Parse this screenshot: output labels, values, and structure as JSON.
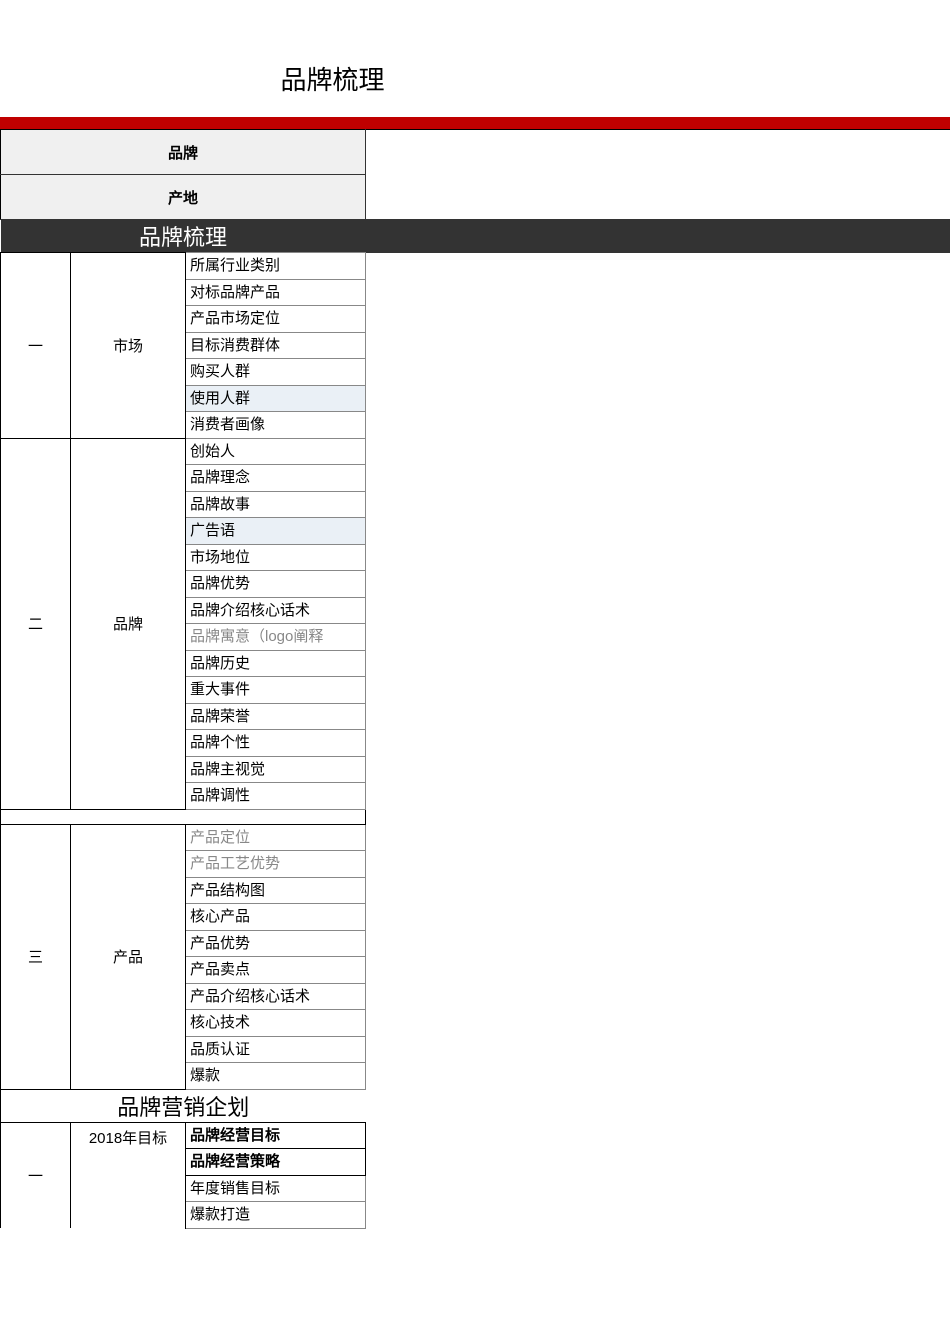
{
  "page_title": "品牌梳理",
  "colors": {
    "red_bar": "#c00000",
    "dark_header_bg": "#333333",
    "header_bg": "#f0f0f0",
    "bluish_row": "#eaf0f6",
    "gray_text": "#888888"
  },
  "top_headers": [
    "品牌",
    "产地"
  ],
  "dark_section_header": "品牌梳理",
  "sections": [
    {
      "index": "一",
      "category": "市场",
      "items": [
        {
          "label": "所属行业类别",
          "style": "normal"
        },
        {
          "label": "对标品牌产品",
          "style": "normal"
        },
        {
          "label": "产品市场定位",
          "style": "normal"
        },
        {
          "label": "目标消费群体",
          "style": "normal"
        },
        {
          "label": "购买人群",
          "style": "normal"
        },
        {
          "label": "使用人群",
          "style": "bluish"
        },
        {
          "label": "消费者画像",
          "style": "normal"
        }
      ]
    },
    {
      "index": "二",
      "category": "品牌",
      "items": [
        {
          "label": "创始人",
          "style": "normal"
        },
        {
          "label": "品牌理念",
          "style": "normal"
        },
        {
          "label": "品牌故事",
          "style": "normal"
        },
        {
          "label": "广告语",
          "style": "bluish"
        },
        {
          "label": "市场地位",
          "style": "normal"
        },
        {
          "label": "品牌优势",
          "style": "normal"
        },
        {
          "label": "品牌介绍核心话术",
          "style": "normal"
        },
        {
          "label": "品牌寓意（logo阐释",
          "style": "gray"
        },
        {
          "label": "品牌历史",
          "style": "normal"
        },
        {
          "label": "重大事件",
          "style": "normal"
        },
        {
          "label": "品牌荣誉",
          "style": "normal"
        },
        {
          "label": "品牌个性",
          "style": "normal"
        },
        {
          "label": "品牌主视觉",
          "style": "normal"
        },
        {
          "label": "品牌调性",
          "style": "normal"
        }
      ]
    },
    {
      "index": "三",
      "category": "产品",
      "items": [
        {
          "label": "产品定位",
          "style": "gray"
        },
        {
          "label": "产品工艺优势",
          "style": "gray"
        },
        {
          "label": "产品结构图",
          "style": "normal"
        },
        {
          "label": "核心产品",
          "style": "normal"
        },
        {
          "label": "产品优势",
          "style": "normal"
        },
        {
          "label": "产品卖点",
          "style": "normal"
        },
        {
          "label": "产品介绍核心话术",
          "style": "normal"
        },
        {
          "label": "核心技术",
          "style": "normal"
        },
        {
          "label": "品质认证",
          "style": "normal"
        },
        {
          "label": "爆款",
          "style": "normal"
        }
      ]
    }
  ],
  "marketing_header": "品牌营销企划",
  "marketing_section": {
    "index": "一",
    "category": "2018年目标",
    "items": [
      {
        "label": "品牌经营目标",
        "style": "bold"
      },
      {
        "label": "品牌经营策略",
        "style": "bold"
      },
      {
        "label": "年度销售目标",
        "style": "normal"
      },
      {
        "label": "爆款打造",
        "style": "normal"
      }
    ]
  }
}
